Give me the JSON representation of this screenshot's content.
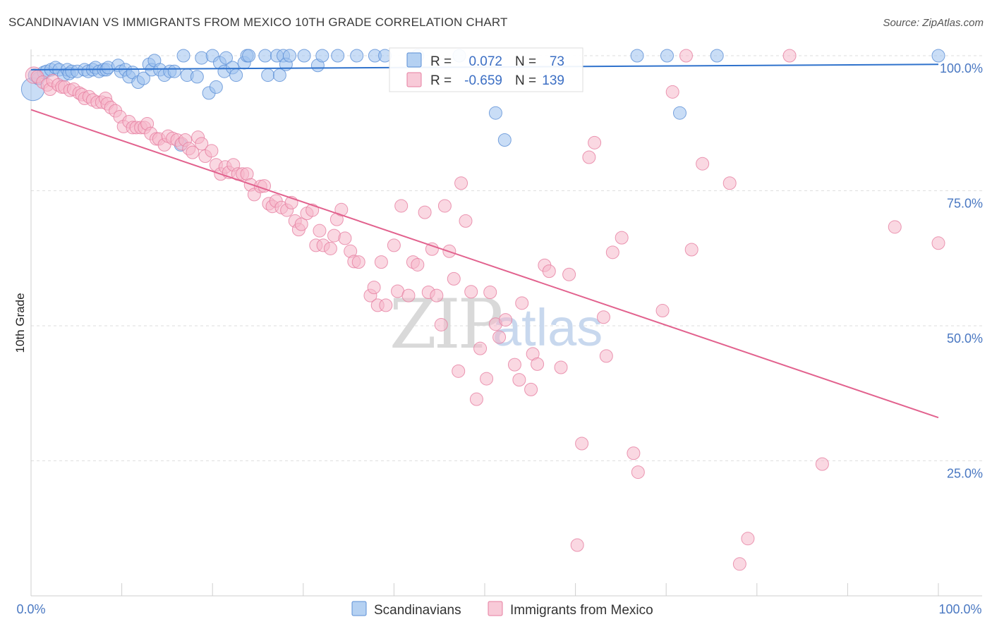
{
  "title": "SCANDINAVIAN VS IMMIGRANTS FROM MEXICO 10TH GRADE CORRELATION CHART",
  "source": "Source: ZipAtlas.com",
  "watermark": {
    "zip": "ZIP",
    "atlas": "atlas"
  },
  "chart_data": {
    "type": "scatter",
    "title": "SCANDINAVIAN VS IMMIGRANTS FROM MEXICO 10TH GRADE CORRELATION CHART",
    "xlabel": "",
    "ylabel": "10th Grade",
    "xlim": [
      0,
      100
    ],
    "ylim": [
      0,
      100
    ],
    "x_tick_labels": [
      "0.0%",
      "100.0%"
    ],
    "y_ticks": [
      25,
      50,
      75,
      100
    ],
    "y_tick_labels": [
      "25.0%",
      "50.0%",
      "75.0%",
      "100.0%"
    ],
    "grid": true,
    "legend": [
      {
        "name": "Scandinavians",
        "color": "#9cc1ee",
        "edge": "#5b8fd6",
        "R_label": "R =",
        "R": "0.072",
        "N_label": "N =",
        "N": "73"
      },
      {
        "name": "Immigrants from Mexico",
        "color": "#f6b8cb",
        "edge": "#e67ea0",
        "R_label": "R =",
        "R": "-0.659",
        "N_label": "N =",
        "N": "139"
      }
    ],
    "series": [
      {
        "name": "Scandinavians",
        "color": "#9cc1ee",
        "edge": "#5b8fd6",
        "line_color": "#2f72cc",
        "trend": {
          "x": [
            0,
            100
          ],
          "y": [
            97.4,
            98.4
          ]
        },
        "points": [
          [
            0.2,
            93.8,
            1.8
          ],
          [
            0.4,
            96.4,
            1
          ],
          [
            0.8,
            95.8,
            1
          ],
          [
            1.4,
            96.9,
            1
          ],
          [
            1.7,
            97.1,
            1
          ],
          [
            2.2,
            97.4,
            1
          ],
          [
            2.7,
            97.8,
            1
          ],
          [
            3.1,
            97.4,
            1
          ],
          [
            3.6,
            96.4,
            1
          ],
          [
            4.0,
            97.4,
            1
          ],
          [
            4.2,
            96.7,
            1
          ],
          [
            4.5,
            97.1,
            1
          ],
          [
            5.1,
            97.1,
            1
          ],
          [
            5.9,
            97.4,
            1
          ],
          [
            6.3,
            97.1,
            1
          ],
          [
            6.8,
            97.4,
            1
          ],
          [
            7.1,
            97.8,
            1
          ],
          [
            7.5,
            97.1,
            1
          ],
          [
            8.0,
            97.4,
            1
          ],
          [
            8.3,
            97.4,
            1
          ],
          [
            8.5,
            97.8,
            1
          ],
          [
            9.6,
            98.2,
            1
          ],
          [
            9.9,
            97.1,
            1
          ],
          [
            10.4,
            97.4,
            1
          ],
          [
            10.8,
            96.1,
            1
          ],
          [
            11.2,
            96.9,
            1
          ],
          [
            11.8,
            95.1,
            1
          ],
          [
            12.4,
            95.8,
            1
          ],
          [
            13.0,
            98.4,
            1
          ],
          [
            13.3,
            97.4,
            1
          ],
          [
            13.6,
            99.1,
            1
          ],
          [
            14.2,
            97.4,
            1
          ],
          [
            14.7,
            96.4,
            1
          ],
          [
            15.3,
            97.1,
            1
          ],
          [
            15.8,
            97.1,
            1
          ],
          [
            16.5,
            83.5,
            1
          ],
          [
            16.8,
            100,
            1
          ],
          [
            17.2,
            96.4,
            1
          ],
          [
            18.3,
            96.1,
            1
          ],
          [
            18.8,
            99.6,
            1
          ],
          [
            19.6,
            93.1,
            1
          ],
          [
            20.0,
            100,
            1
          ],
          [
            20.4,
            94.2,
            1
          ],
          [
            20.8,
            98.7,
            1
          ],
          [
            21.3,
            97.1,
            1
          ],
          [
            21.5,
            99.6,
            1
          ],
          [
            22.2,
            97.8,
            1
          ],
          [
            22.6,
            96.4,
            1
          ],
          [
            23.5,
            98.7,
            1
          ],
          [
            23.8,
            100,
            1
          ],
          [
            24.0,
            100,
            1
          ],
          [
            25.8,
            100,
            1
          ],
          [
            26.1,
            96.4,
            1
          ],
          [
            27.1,
            100,
            1
          ],
          [
            27.4,
            96.4,
            1
          ],
          [
            27.8,
            100,
            1
          ],
          [
            28.1,
            98.4,
            1
          ],
          [
            28.5,
            100,
            1
          ],
          [
            30.1,
            100,
            1
          ],
          [
            31.6,
            98.2,
            1
          ],
          [
            32.1,
            100,
            1
          ],
          [
            33.8,
            100,
            1
          ],
          [
            35.9,
            100,
            1
          ],
          [
            37.9,
            100,
            1
          ],
          [
            39.0,
            100,
            1
          ],
          [
            42.6,
            100,
            1
          ],
          [
            47.2,
            100,
            1
          ],
          [
            51.2,
            89.4,
            1
          ],
          [
            52.2,
            84.4,
            1
          ],
          [
            66.8,
            100,
            1
          ],
          [
            70.1,
            100,
            1
          ],
          [
            71.5,
            89.4,
            1
          ],
          [
            75.6,
            100,
            1
          ],
          [
            100,
            100,
            1
          ]
        ]
      },
      {
        "name": "Immigrants from Mexico",
        "color": "#f6b8cb",
        "edge": "#e67ea0",
        "line_color": "#e2628e",
        "trend": {
          "x": [
            0,
            100
          ],
          "y": [
            90.0,
            33.0
          ]
        },
        "points": [
          [
            0.3,
            96.4,
            1.3
          ],
          [
            0.7,
            96.1,
            1
          ],
          [
            1.3,
            95.1,
            1
          ],
          [
            1.8,
            94.6,
            1
          ],
          [
            2.1,
            93.8,
            1
          ],
          [
            2.4,
            95.4,
            1
          ],
          [
            3.0,
            94.6,
            1
          ],
          [
            3.4,
            94.2,
            1
          ],
          [
            3.7,
            94.2,
            1
          ],
          [
            4.3,
            93.6,
            1
          ],
          [
            4.7,
            93.8,
            1
          ],
          [
            5.3,
            93.1,
            1
          ],
          [
            5.6,
            92.8,
            1
          ],
          [
            5.9,
            92.1,
            1
          ],
          [
            6.4,
            92.4,
            1
          ],
          [
            6.8,
            91.8,
            1
          ],
          [
            7.3,
            91.4,
            1
          ],
          [
            7.8,
            91.4,
            1
          ],
          [
            8.2,
            92.1,
            1
          ],
          [
            8.4,
            91.1,
            1
          ],
          [
            8.8,
            90.4,
            1
          ],
          [
            9.3,
            89.8,
            1
          ],
          [
            9.8,
            88.7,
            1
          ],
          [
            10.2,
            86.9,
            1
          ],
          [
            10.8,
            87.8,
            1
          ],
          [
            11.2,
            86.7,
            1
          ],
          [
            11.6,
            86.7,
            1
          ],
          [
            12.1,
            86.7,
            1
          ],
          [
            12.5,
            86.7,
            1
          ],
          [
            12.8,
            87.4,
            1
          ],
          [
            13.2,
            85.6,
            1
          ],
          [
            13.8,
            84.6,
            1
          ],
          [
            14.1,
            84.6,
            1
          ],
          [
            14.7,
            83.5,
            1
          ],
          [
            15.1,
            85.1,
            1
          ],
          [
            15.6,
            84.7,
            1
          ],
          [
            16.1,
            84.4,
            1
          ],
          [
            16.6,
            83.7,
            1
          ],
          [
            17.0,
            84.4,
            1
          ],
          [
            17.4,
            82.8,
            1
          ],
          [
            17.8,
            82.1,
            1
          ],
          [
            18.4,
            84.9,
            1
          ],
          [
            18.8,
            83.7,
            1
          ],
          [
            19.2,
            81.4,
            1
          ],
          [
            19.9,
            82.4,
            1
          ],
          [
            20.4,
            79.8,
            1
          ],
          [
            20.9,
            78.1,
            1
          ],
          [
            21.4,
            79.4,
            1
          ],
          [
            21.8,
            78.4,
            1
          ],
          [
            22.3,
            79.8,
            1
          ],
          [
            22.8,
            78.1,
            1
          ],
          [
            23.3,
            78.1,
            1
          ],
          [
            23.8,
            78.1,
            1
          ],
          [
            24.2,
            76.1,
            1
          ],
          [
            24.6,
            74.3,
            1
          ],
          [
            25.3,
            75.8,
            1
          ],
          [
            25.7,
            75.9,
            1
          ],
          [
            26.2,
            72.6,
            1
          ],
          [
            26.6,
            72.1,
            1
          ],
          [
            27.0,
            73.1,
            1
          ],
          [
            27.6,
            71.9,
            1
          ],
          [
            28.2,
            71.4,
            1
          ],
          [
            28.7,
            72.8,
            1
          ],
          [
            29.1,
            69.4,
            1
          ],
          [
            29.5,
            67.8,
            1
          ],
          [
            29.8,
            68.8,
            1
          ],
          [
            30.4,
            70.8,
            1
          ],
          [
            31.0,
            71.4,
            1
          ],
          [
            31.4,
            64.9,
            1
          ],
          [
            31.8,
            67.6,
            1
          ],
          [
            32.2,
            64.9,
            1
          ],
          [
            33.0,
            64.3,
            1
          ],
          [
            33.4,
            66.7,
            1
          ],
          [
            33.7,
            69.7,
            1
          ],
          [
            34.2,
            71.5,
            1
          ],
          [
            34.6,
            66.2,
            1
          ],
          [
            35.2,
            63.8,
            1
          ],
          [
            35.6,
            61.9,
            1
          ],
          [
            36.1,
            61.8,
            1
          ],
          [
            37.4,
            55.6,
            1
          ],
          [
            37.8,
            57.1,
            1
          ],
          [
            38.2,
            53.8,
            1
          ],
          [
            38.6,
            61.8,
            1
          ],
          [
            39.1,
            53.8,
            1
          ],
          [
            40.0,
            64.9,
            1
          ],
          [
            40.4,
            56.4,
            1
          ],
          [
            40.8,
            72.2,
            1
          ],
          [
            41.6,
            55.6,
            1
          ],
          [
            42.1,
            61.8,
            1
          ],
          [
            42.6,
            61.3,
            1
          ],
          [
            43.4,
            71.0,
            1
          ],
          [
            43.8,
            56.2,
            1
          ],
          [
            44.2,
            64.2,
            1
          ],
          [
            44.7,
            55.6,
            1
          ],
          [
            45.2,
            50.2,
            1
          ],
          [
            45.6,
            72.2,
            1
          ],
          [
            46.1,
            63.8,
            1
          ],
          [
            46.6,
            58.7,
            1
          ],
          [
            47.1,
            41.6,
            1
          ],
          [
            47.4,
            76.4,
            1
          ],
          [
            47.9,
            69.4,
            1
          ],
          [
            48.5,
            56.3,
            1
          ],
          [
            49.1,
            36.4,
            1
          ],
          [
            49.5,
            45.8,
            1
          ],
          [
            50.2,
            40.2,
            1
          ],
          [
            50.6,
            56.2,
            1
          ],
          [
            51.2,
            50.3,
            1
          ],
          [
            51.6,
            47.9,
            1
          ],
          [
            52.3,
            51.1,
            1
          ],
          [
            53.3,
            42.8,
            1
          ],
          [
            53.8,
            40.0,
            1
          ],
          [
            54.1,
            54.2,
            1
          ],
          [
            55.1,
            38.2,
            1
          ],
          [
            55.3,
            44.8,
            1
          ],
          [
            55.8,
            42.9,
            1
          ],
          [
            56.6,
            61.2,
            1
          ],
          [
            57.1,
            60.1,
            1
          ],
          [
            58.4,
            42.3,
            1
          ],
          [
            59.3,
            59.5,
            1
          ],
          [
            60.2,
            9.4,
            1
          ],
          [
            60.7,
            28.2,
            1
          ],
          [
            61.5,
            81.2,
            1
          ],
          [
            62.1,
            83.9,
            1
          ],
          [
            63.1,
            51.6,
            1
          ],
          [
            63.4,
            44.4,
            1
          ],
          [
            64.1,
            63.6,
            1
          ],
          [
            65.1,
            66.3,
            1
          ],
          [
            66.4,
            26.4,
            1
          ],
          [
            66.9,
            22.9,
            1
          ],
          [
            69.6,
            52.8,
            1
          ],
          [
            70.7,
            93.3,
            1
          ],
          [
            72.2,
            100,
            1
          ],
          [
            72.8,
            64.1,
            1
          ],
          [
            74.0,
            80.0,
            1
          ],
          [
            77.0,
            76.4,
            1
          ],
          [
            78.1,
            5.9,
            1
          ],
          [
            79.0,
            10.6,
            1
          ],
          [
            83.6,
            100,
            1
          ],
          [
            87.2,
            24.4,
            1
          ],
          [
            95.2,
            68.3,
            1
          ],
          [
            100,
            65.3,
            1
          ]
        ]
      }
    ]
  }
}
